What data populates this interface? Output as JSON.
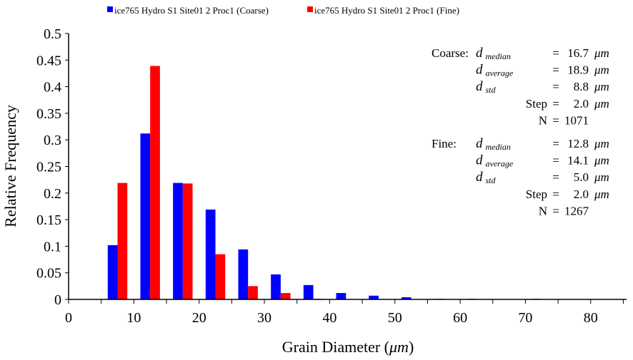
{
  "chart_data": {
    "type": "bar",
    "xlabel": "Grain Diameter (",
    "xlabel_unit": "μm",
    "xlabel_close": ")",
    "ylabel": "Relative Frequency",
    "xlim": [
      0,
      85.5
    ],
    "ylim": [
      0,
      0.5
    ],
    "xticks": [
      0,
      10,
      20,
      30,
      40,
      50,
      60,
      70,
      80
    ],
    "yticks": [
      "0",
      "0.05",
      "0.1",
      "0.15",
      "0.2",
      "0.25",
      "0.3",
      "0.35",
      "0.4",
      "0.45",
      "0.5"
    ],
    "bin_centers": [
      7.5,
      12.5,
      17.5,
      22.5,
      27.5,
      32.5,
      37.5,
      42.5,
      47.5,
      52.5,
      57.5,
      62.5,
      67.5,
      72.5,
      77.5,
      82.5
    ],
    "series": [
      {
        "name": "ice765 Hydro S1 Site01 2 Proc1 (Coarse)",
        "color": "#0000ff",
        "values": [
          0.102,
          0.312,
          0.219,
          0.169,
          0.094,
          0.047,
          0.027,
          0.012,
          0.007,
          0.004,
          0.001,
          0.001,
          0,
          0.001,
          0,
          0
        ]
      },
      {
        "name": "ice765 Hydro S1 Site01 2 Proc1 (Fine)",
        "color": "#ff0000",
        "values": [
          0.219,
          0.439,
          0.218,
          0.085,
          0.025,
          0.012,
          0.001,
          0,
          0,
          0,
          0,
          0,
          0,
          0,
          0,
          0
        ]
      }
    ],
    "legend_placement": "top",
    "annotations": [
      {
        "group": "Coarse:",
        "rows": [
          {
            "label": "d",
            "sub": "median",
            "eq": "=",
            "val": "16.7",
            "unit": "μm"
          },
          {
            "label": "d",
            "sub": "average",
            "eq": "=",
            "val": "18.9",
            "unit": "μm"
          },
          {
            "label": "d",
            "sub": "std",
            "eq": "=",
            "val": "8.8",
            "unit": "μm"
          },
          {
            "label": "Step",
            "sub": "",
            "eq": "=",
            "val": "2.0",
            "unit": "μm"
          },
          {
            "label": "N",
            "sub": "",
            "eq": "=",
            "val": "1071",
            "unit": ""
          }
        ]
      },
      {
        "group": "Fine:",
        "rows": [
          {
            "label": "d",
            "sub": "median",
            "eq": "=",
            "val": "12.8",
            "unit": "μm"
          },
          {
            "label": "d",
            "sub": "average",
            "eq": "=",
            "val": "14.1",
            "unit": "μm"
          },
          {
            "label": "d",
            "sub": "std",
            "eq": "=",
            "val": "5.0",
            "unit": "μm"
          },
          {
            "label": "Step",
            "sub": "",
            "eq": "=",
            "val": "2.0",
            "unit": "μm"
          },
          {
            "label": "N",
            "sub": "",
            "eq": "=",
            "val": "1267",
            "unit": ""
          }
        ]
      }
    ]
  }
}
